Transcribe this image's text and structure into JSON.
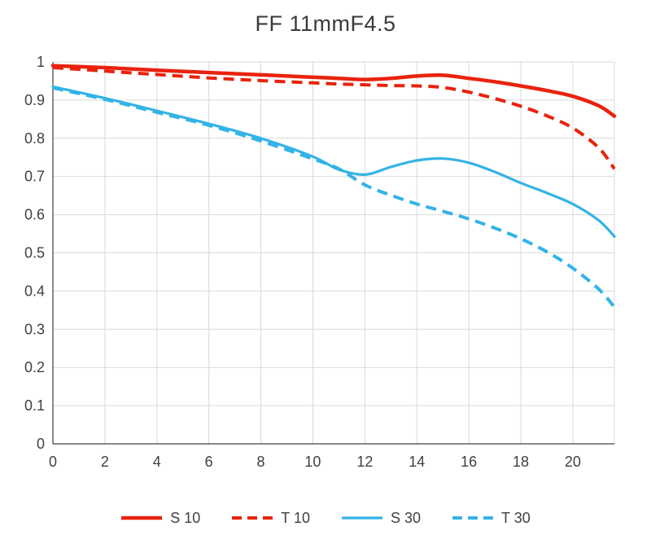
{
  "chart_data": {
    "type": "line",
    "title": "FF 11mmF4.5",
    "xlabel": "",
    "ylabel": "",
    "xlim": [
      0,
      21.6
    ],
    "ylim": [
      0,
      1
    ],
    "x_ticks": [
      0,
      2,
      4,
      6,
      8,
      10,
      12,
      14,
      16,
      18,
      20
    ],
    "y_ticks": [
      0,
      0.1,
      0.2,
      0.3,
      0.4,
      0.5,
      0.6,
      0.7,
      0.8,
      0.9,
      1
    ],
    "grid": true,
    "grid_color": "#d9d9d9",
    "axis_color": "#404040",
    "tick_label_color": "#404040",
    "legend_position": "bottom",
    "x": [
      0,
      2,
      4,
      6,
      8,
      10,
      11,
      12,
      13,
      14,
      15,
      16,
      17,
      18,
      19,
      20,
      21,
      21.6
    ],
    "series": [
      {
        "name": "S 10",
        "color": "#e8230d",
        "style": "solid",
        "width": 4.5,
        "values": [
          0.99,
          0.985,
          0.978,
          0.972,
          0.966,
          0.96,
          0.957,
          0.954,
          0.957,
          0.963,
          0.965,
          0.957,
          0.948,
          0.937,
          0.925,
          0.91,
          0.885,
          0.858
        ]
      },
      {
        "name": "T 10",
        "color": "#e8230d",
        "style": "dashed",
        "width": 4,
        "values": [
          0.985,
          0.976,
          0.967,
          0.958,
          0.951,
          0.945,
          0.942,
          0.94,
          0.938,
          0.937,
          0.933,
          0.921,
          0.904,
          0.884,
          0.859,
          0.827,
          0.775,
          0.72
        ]
      },
      {
        "name": "S 30",
        "color": "#33b3e6",
        "style": "solid",
        "width": 3.2,
        "values": [
          0.935,
          0.905,
          0.872,
          0.838,
          0.8,
          0.752,
          0.718,
          0.705,
          0.725,
          0.742,
          0.747,
          0.736,
          0.712,
          0.683,
          0.657,
          0.628,
          0.585,
          0.543
        ]
      },
      {
        "name": "T 30",
        "color": "#33b3e6",
        "style": "dashed",
        "width": 4,
        "values": [
          0.932,
          0.902,
          0.868,
          0.834,
          0.793,
          0.746,
          0.72,
          0.678,
          0.651,
          0.628,
          0.609,
          0.589,
          0.565,
          0.537,
          0.503,
          0.46,
          0.405,
          0.358
        ]
      }
    ]
  }
}
